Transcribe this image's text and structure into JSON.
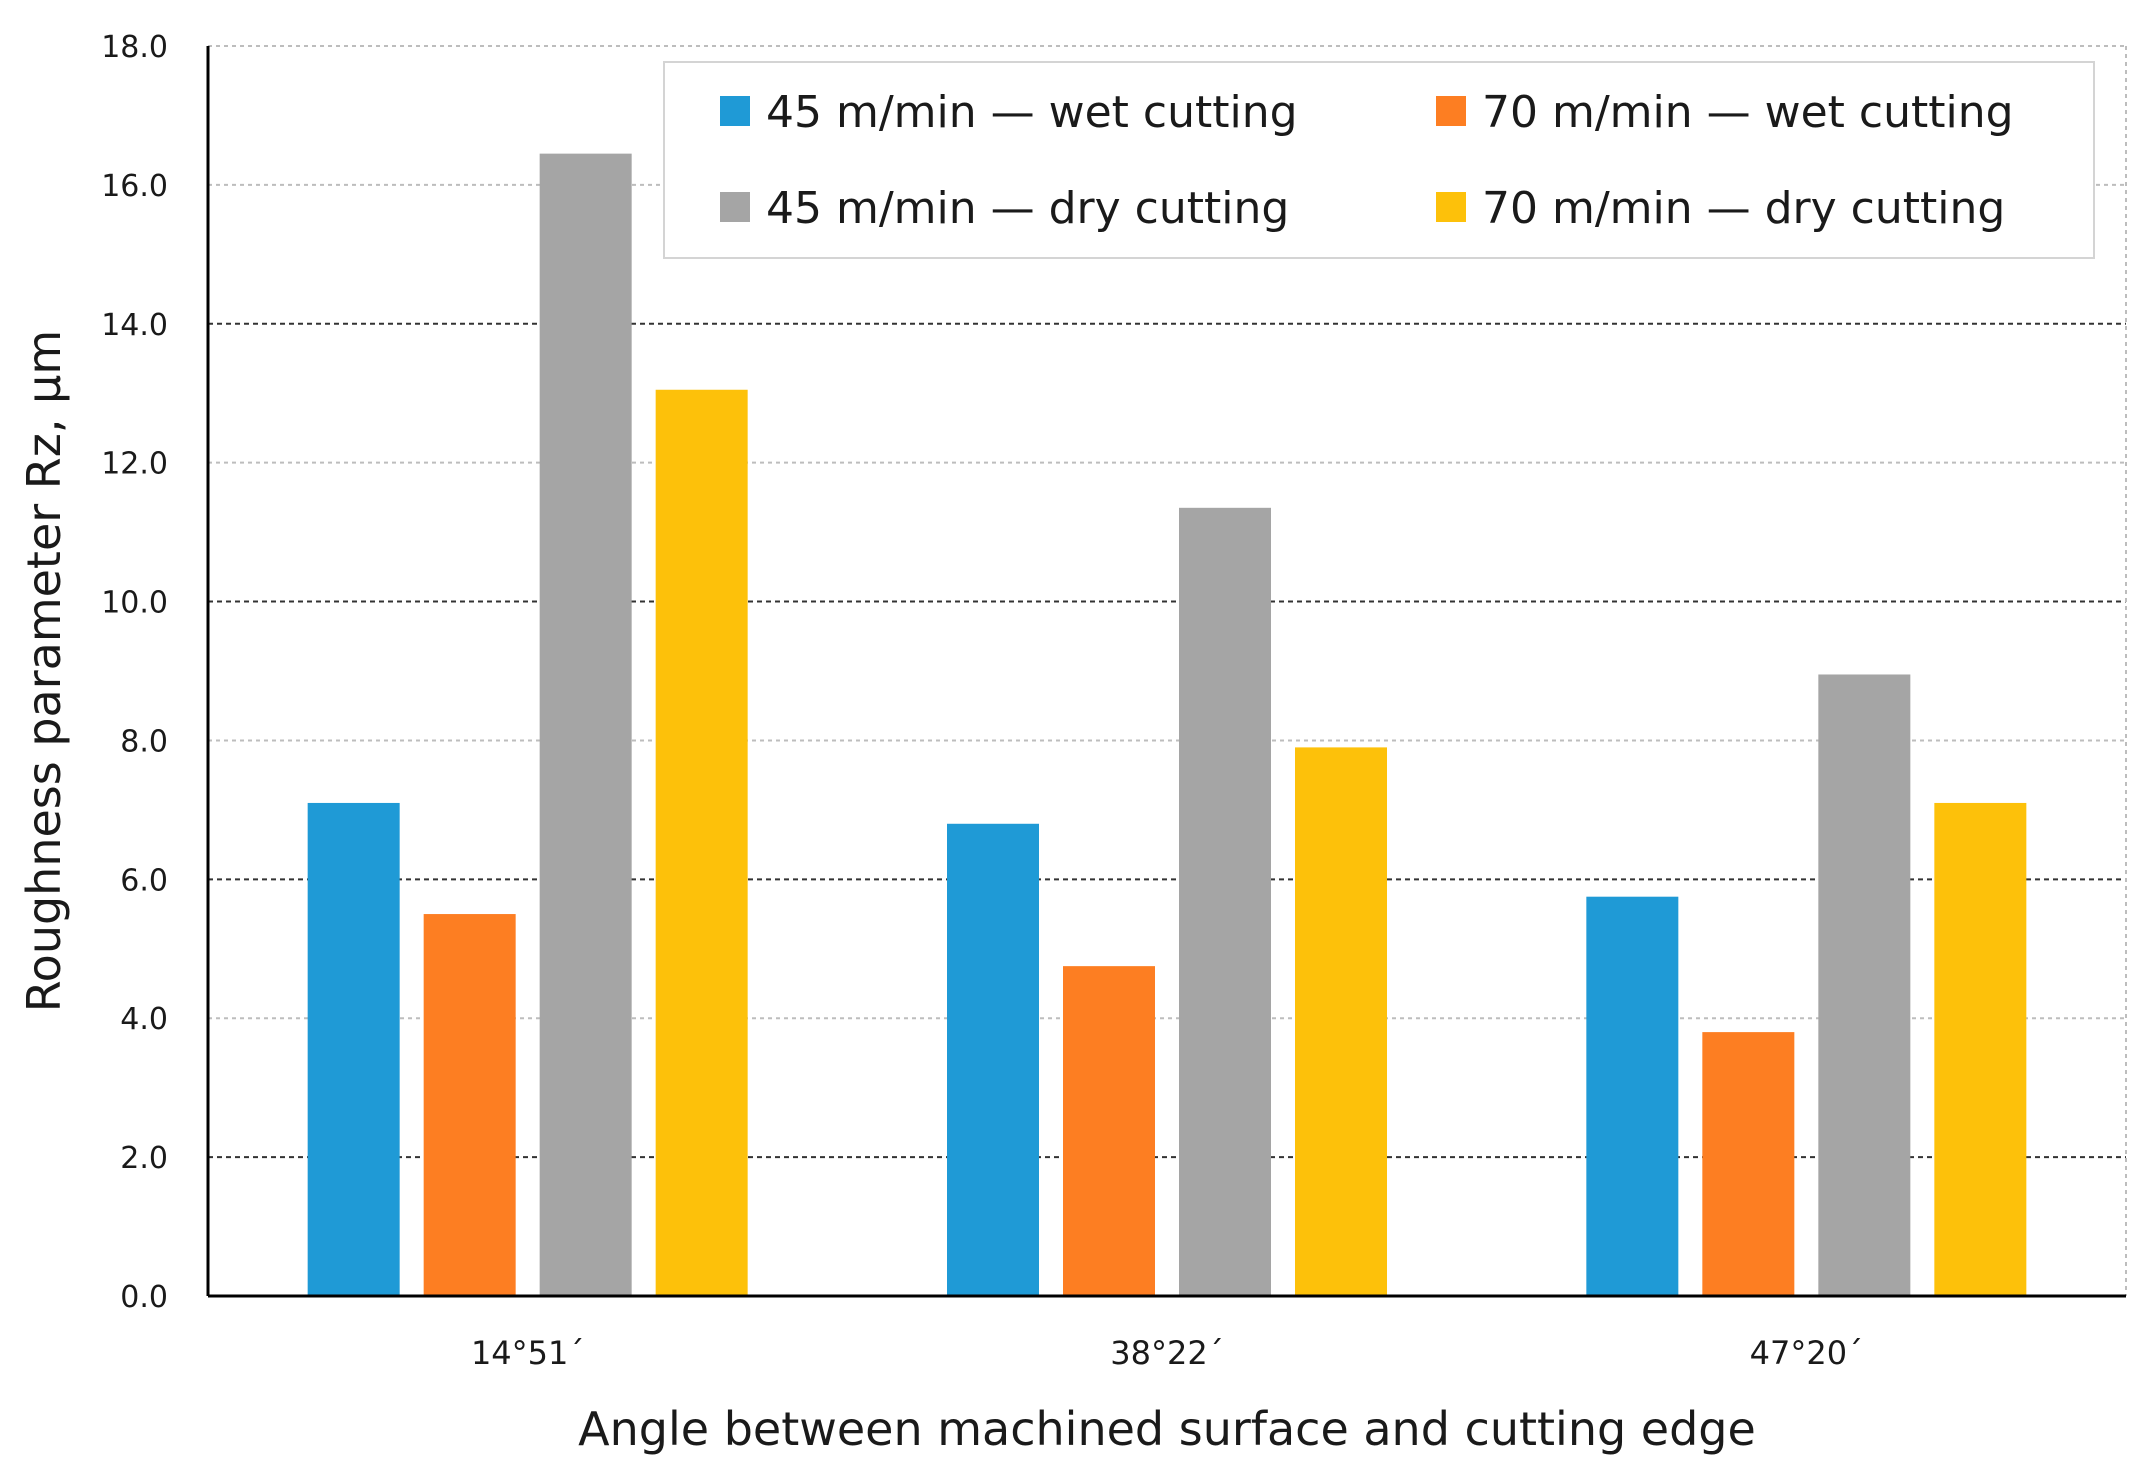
{
  "chart_data": {
    "type": "bar",
    "title": "",
    "xlabel": "Angle between machined surface and cutting edge",
    "ylabel": "Roughness parameter Rz, µm",
    "ylim": [
      0,
      18
    ],
    "yticks": [
      "0.0",
      "2.0",
      "4.0",
      "6.0",
      "8.0",
      "10.0",
      "12.0",
      "14.0",
      "16.0",
      "18.0"
    ],
    "grid": true,
    "legend_position": "top-right",
    "categories": [
      "14°51´",
      "38°22´",
      "47°20´"
    ],
    "series": [
      {
        "name": "45 m/min — wet cutting",
        "color": "#1f9ad6",
        "values": [
          7.1,
          6.8,
          5.75
        ]
      },
      {
        "name": "70 m/min — wet cutting",
        "color": "#fd7e22",
        "values": [
          5.5,
          4.75,
          3.8
        ]
      },
      {
        "name": "45 m/min — dry cutting",
        "color": "#a5a5a5",
        "values": [
          16.45,
          11.35,
          8.95
        ]
      },
      {
        "name": "70 m/min — dry cutting",
        "color": "#fdc10a",
        "values": [
          13.05,
          7.9,
          7.1
        ]
      }
    ]
  }
}
